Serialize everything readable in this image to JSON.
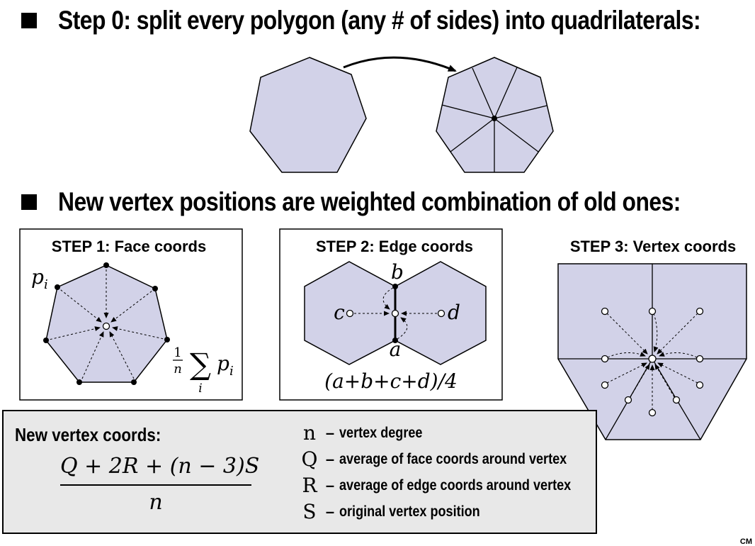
{
  "headings": {
    "step0": "Step 0: split every polygon (any # of sides) into quadrilaterals:",
    "weights": "New vertex positions are weighted combination of old ones:"
  },
  "step1": {
    "title": "STEP 1: Face coords",
    "label_p": "p",
    "label_p_sub": "i",
    "formula_num": "1",
    "formula_den": "n",
    "formula_sum": "∑",
    "formula_sum_sub": "i",
    "formula_p": "p",
    "formula_p_sub": "i"
  },
  "step2": {
    "title": "STEP 2: Edge coords",
    "label_a": "a",
    "label_b": "b",
    "label_c": "c",
    "label_d": "d",
    "formula": "(a+b+c+d)/4"
  },
  "step3": {
    "title": "STEP 3: Vertex coords"
  },
  "legend": {
    "title": "New vertex coords:",
    "numerator": "Q + 2R + (n − 3)S",
    "denominator": "n",
    "items": [
      {
        "symbol": "n",
        "dash": "–",
        "desc": "vertex degree"
      },
      {
        "symbol": "Q",
        "dash": "–",
        "desc": "average of face coords around vertex"
      },
      {
        "symbol": "R",
        "dash": "–",
        "desc": "average of edge coords around vertex"
      },
      {
        "symbol": "S",
        "dash": "–",
        "desc": "original vertex position"
      }
    ]
  },
  "corner_text": "CM",
  "colors": {
    "fill": "#d2d2e8",
    "legend_bg": "#e8e8e8"
  }
}
